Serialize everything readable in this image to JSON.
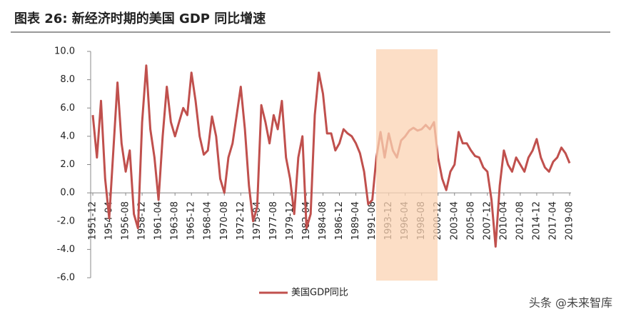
{
  "chart_data": {
    "type": "line",
    "title": "图表 26:  新经济时期的美国 GDP 同比增速",
    "watermark": "头条 @未来智库",
    "categories": [
      "1951-12",
      null,
      null,
      null,
      "1954-04",
      null,
      null,
      null,
      "1956-08",
      null,
      null,
      null,
      "1958-12",
      null,
      null,
      null,
      "1961-04",
      null,
      null,
      null,
      "1963-08",
      null,
      null,
      null,
      "1965-12",
      null,
      null,
      null,
      "1968-04",
      null,
      null,
      null,
      "1970-08",
      null,
      null,
      null,
      "1972-12",
      null,
      null,
      null,
      "1975-04",
      null,
      null,
      null,
      "1977-08",
      null,
      null,
      null,
      "1979-12",
      null,
      null,
      null,
      "1982-04",
      null,
      null,
      null,
      "1984-08",
      null,
      null,
      null,
      "1986-12",
      null,
      null,
      null,
      "1989-04",
      null,
      null,
      null,
      "1991-08",
      null,
      null,
      null,
      "1993-12",
      null,
      null,
      null,
      "1996-04",
      null,
      null,
      null,
      "1998-08",
      null,
      null,
      null,
      "2000-12",
      null,
      null,
      null,
      "2003-04",
      null,
      null,
      null,
      "2005-08",
      null,
      null,
      null,
      "2007-12",
      null,
      null,
      null,
      "2010-04",
      null,
      null,
      null,
      "2012-08",
      null,
      null,
      null,
      "2014-12",
      null,
      null,
      null,
      "2017-04",
      null,
      null,
      null,
      "2019-08"
    ],
    "series": [
      {
        "name": "美国GDP同比",
        "color": "#c0504d",
        "values": [
          5.5,
          2.5,
          6.5,
          1.0,
          -1.8,
          3.0,
          7.8,
          3.5,
          1.5,
          3.0,
          -1.5,
          -2.5,
          5.0,
          9.0,
          4.5,
          2.5,
          -0.5,
          4.0,
          7.5,
          5.0,
          4.0,
          5.0,
          6.0,
          5.5,
          8.5,
          6.5,
          4.0,
          2.7,
          3.0,
          5.4,
          4.0,
          1.0,
          0.0,
          2.5,
          3.5,
          5.5,
          7.5,
          4.5,
          0.5,
          -2.0,
          -1.0,
          6.2,
          5.0,
          3.5,
          5.5,
          4.5,
          6.5,
          2.5,
          1.0,
          -1.5,
          2.5,
          4.0,
          -2.5,
          -1.5,
          5.5,
          8.5,
          7.0,
          4.2,
          4.2,
          3.0,
          3.5,
          4.5,
          4.2,
          4.0,
          3.5,
          2.8,
          1.5,
          -0.8,
          -0.5,
          2.5,
          4.3,
          2.5,
          4.2,
          3.0,
          2.5,
          3.7,
          4.0,
          4.4,
          4.6,
          4.4,
          4.5,
          4.8,
          4.5,
          5.0,
          2.5,
          1.0,
          0.2,
          1.5,
          2.0,
          4.3,
          3.5,
          3.5,
          3.0,
          2.6,
          2.5,
          1.8,
          1.5,
          -0.5,
          -3.8,
          0.5,
          3.0,
          2.0,
          1.5,
          2.5,
          2.0,
          1.5,
          2.5,
          3.0,
          3.8,
          2.5,
          1.8,
          1.5,
          2.2,
          2.5,
          3.2,
          2.8,
          2.1
        ]
      }
    ],
    "ylim": [
      -6,
      10
    ],
    "yticks": [
      {
        "value": -6,
        "label": "-6.0"
      },
      {
        "value": -4,
        "label": "-4.0"
      },
      {
        "value": -2,
        "label": "-2.0"
      },
      {
        "value": 0,
        "label": "0.0"
      },
      {
        "value": 2,
        "label": "2.0"
      },
      {
        "value": 4,
        "label": "4.0"
      },
      {
        "value": 6,
        "label": "6.0"
      },
      {
        "value": 8,
        "label": "8.0"
      },
      {
        "value": 10,
        "label": "10.0"
      }
    ]
  }
}
